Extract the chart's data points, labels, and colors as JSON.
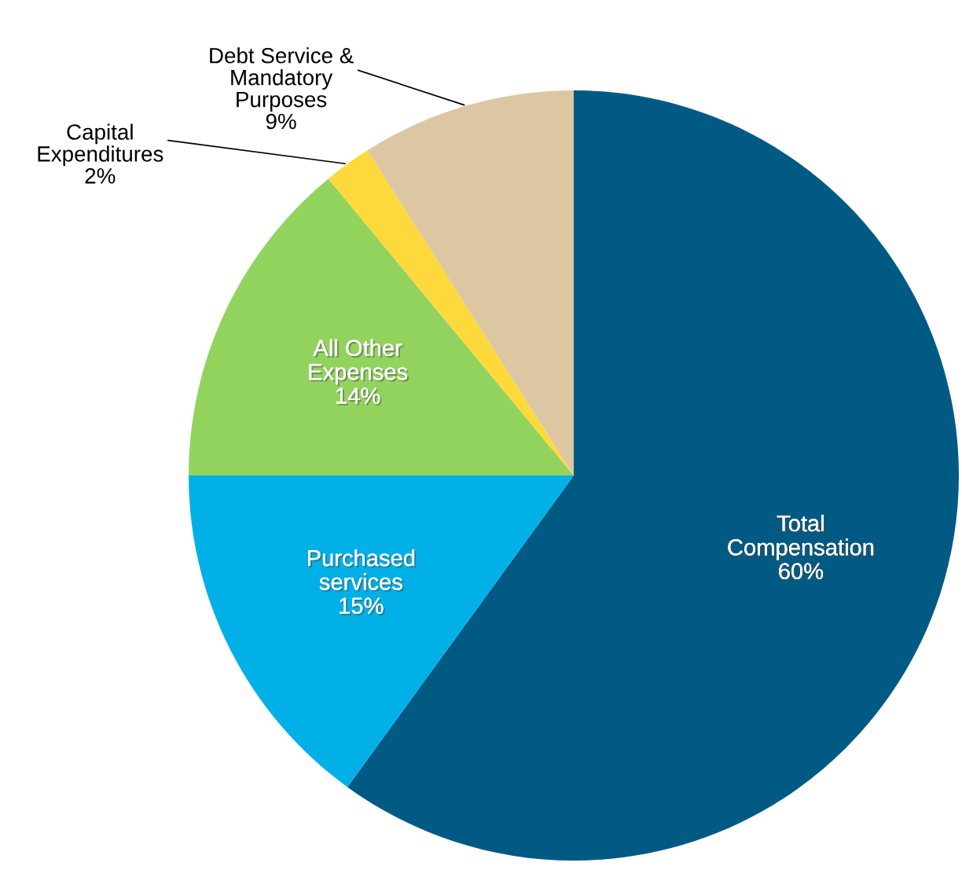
{
  "chart_data": {
    "type": "pie",
    "categories": [
      "Total Compensation",
      "Purchased services",
      "All Other Expenses",
      "Capital Expenditures",
      "Debt Service & Mandatory Purposes"
    ],
    "values": [
      60,
      15,
      14,
      2,
      9
    ],
    "value_labels": [
      "60%",
      "15%",
      "14%",
      "2%",
      "9%"
    ],
    "colors": [
      "#005a84",
      "#00b0e6",
      "#92d35e",
      "#fdd93b",
      "#dcc7a2"
    ],
    "legend": false
  }
}
